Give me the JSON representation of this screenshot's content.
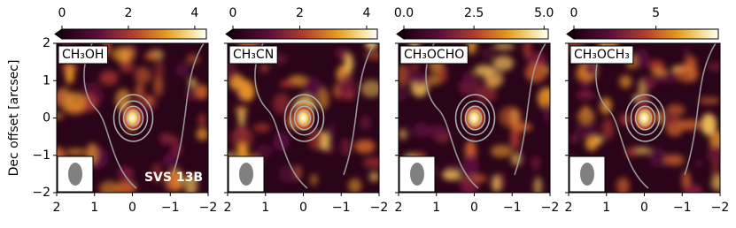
{
  "chart_data": [
    {
      "type": "image",
      "title": "CH₃OH",
      "annotation": "SVS 13B",
      "ylabel": "Dec offset [arcsec]",
      "xlim": [
        2,
        -2
      ],
      "ylim": [
        -2,
        2
      ],
      "xticks": [
        2,
        1,
        0,
        {
          "value": -1,
          "label": "−1"
        },
        {
          "value": -2,
          "label": "−2"
        }
      ],
      "yticks": [
        {
          "value": -2,
          "label": "−2"
        },
        {
          "value": -1,
          "label": "−1"
        },
        0,
        1,
        2
      ],
      "colorbar": {
        "lim": [
          0,
          4.35
        ],
        "ticks": [
          0,
          2,
          4
        ]
      }
    },
    {
      "type": "image",
      "title": "CH₃CN",
      "xlim": [
        2,
        -2
      ],
      "ylim": [
        -2,
        2
      ],
      "xticks": [
        2,
        1,
        0,
        {
          "value": -1,
          "label": "−1"
        },
        {
          "value": -2,
          "label": "−2"
        }
      ],
      "yticks": [
        -2,
        -1,
        0,
        1,
        2
      ],
      "colorbar": {
        "lim": [
          0,
          4.32
        ],
        "ticks": [
          0,
          2,
          4
        ]
      }
    },
    {
      "type": "image",
      "title": "CH₃OCHO",
      "xlim": [
        2,
        -2
      ],
      "ylim": [
        -2,
        2
      ],
      "xticks": [
        2,
        1,
        0,
        {
          "value": -1,
          "label": "−1"
        },
        {
          "value": -2,
          "label": "−2"
        }
      ],
      "yticks": [
        -2,
        -1,
        0,
        1,
        2
      ],
      "colorbar": {
        "lim": [
          0,
          5.15
        ],
        "ticks": [
          {
            "value": 0,
            "label": "0.0"
          },
          {
            "value": 2.5,
            "label": "2.5"
          },
          {
            "value": 5,
            "label": "5.0"
          }
        ]
      }
    },
    {
      "type": "image",
      "title": "CH₃OCH₃",
      "xlim": [
        2,
        -2
      ],
      "ylim": [
        -2,
        2
      ],
      "xticks": [
        2,
        1,
        0,
        {
          "value": -1,
          "label": "−1"
        },
        {
          "value": -2,
          "label": "−2"
        }
      ],
      "yticks": [
        -2,
        -1,
        0,
        1,
        2
      ],
      "colorbar": {
        "lim": [
          0,
          8.8
        ],
        "ticks": [
          0,
          5
        ]
      }
    }
  ]
}
